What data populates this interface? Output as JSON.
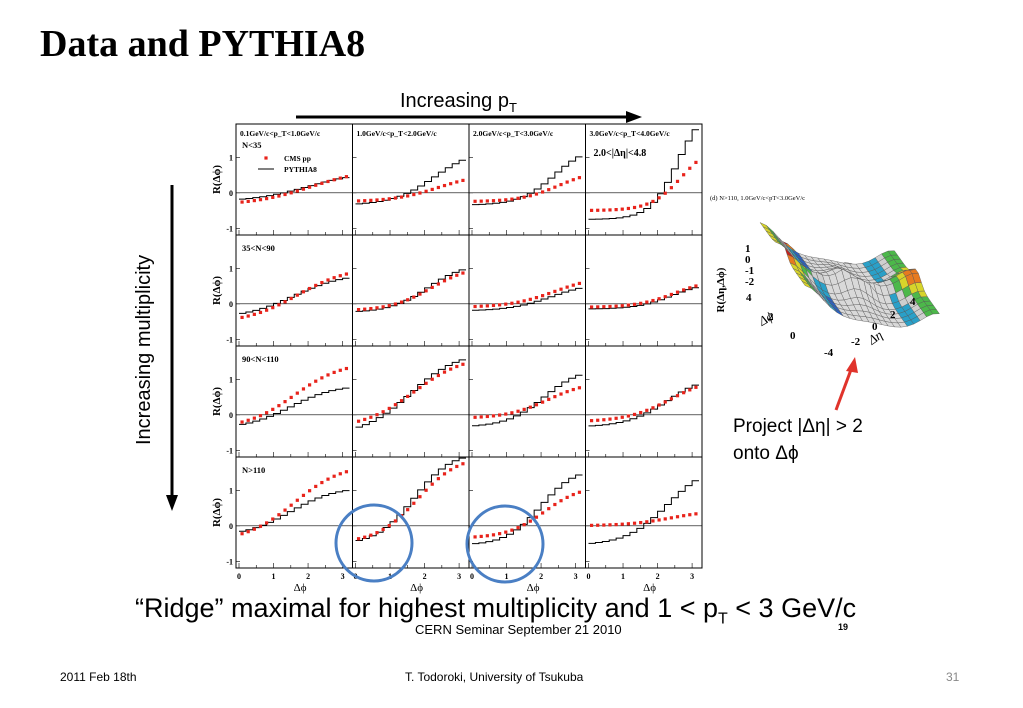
{
  "title": "Data and PYTHIA8",
  "pt_arrow": {
    "label": "Increasing p",
    "sub": "T"
  },
  "multiplicity_arrow": {
    "label": "Increasing multiplicity"
  },
  "ridge": {
    "prefix": "“Ridge”  maximal for highest multiplicity and 1 < p",
    "sub": "T",
    "suffix": " < 3 GeV/c"
  },
  "seminar": "CERN Seminar September 21 2010",
  "seminar_page": "19",
  "footer": {
    "date": "2011 Feb 18th",
    "author": "T. Todoroki, University of Tsukuba",
    "page": "31"
  },
  "inset": {
    "title": "(d) N>110, 1.0GeV/c<p",
    "title_sub": "T",
    "title_end": "<3.0GeV/c",
    "zlabel": "R(Δη,Δϕ)",
    "x_label": "Δϕ",
    "y_label": "Δη",
    "x_ticks": [
      "4",
      "2",
      "0"
    ],
    "y_ticks": [
      "-4",
      "-2",
      "0",
      "2",
      "4"
    ],
    "z_ticks": [
      "1",
      "0",
      "-1",
      "-2"
    ]
  },
  "project_text": {
    "line1": "Project |Δη| > 2",
    "line2": "onto Δϕ"
  },
  "colors": {
    "cms": "#e8231b",
    "pythia": "#000000",
    "circle": "#4a7fc4",
    "arrow": "#e0332b"
  },
  "chart_data": {
    "type": "scatter",
    "ylabel": "R(Δϕ)",
    "xlabel": "Δϕ",
    "xlim": [
      0,
      3.2
    ],
    "x_ticks": [
      "0",
      "1",
      "2",
      "3"
    ],
    "y_ticks": [
      "1",
      "0",
      "-1"
    ],
    "rapidity_label": "2.0<|Δη|<4.8",
    "columns": [
      "0.1GeV/c<p_T<1.0GeV/c",
      "1.0GeV/c<p_T<2.0GeV/c",
      "2.0GeV/c<p_T<3.0GeV/c",
      "3.0GeV/c<p_T<4.0GeV/c"
    ],
    "rows": [
      "N<35",
      "35<N<90",
      "90<N<110",
      "N>110"
    ],
    "legend": [
      "CMS pp",
      "PYTHIA8"
    ],
    "panels": [
      [
        {
          "d": [
            -0.35,
            0.7
          ],
          "m": [
            2.0,
            0.8
          ],
          "s": [
            -0.25,
            0.6
          ]
        },
        {
          "d": [
            -0.25,
            0.55
          ],
          "m": [
            2.3,
            0.6
          ],
          "s": [
            -0.35,
            1.25
          ]
        },
        {
          "d": [
            -0.25,
            0.65
          ],
          "m": [
            2.4,
            0.5
          ],
          "s": [
            -0.35,
            1.35
          ]
        },
        {
          "d": [
            -0.5,
            1.4
          ],
          "m": [
            2.6,
            0.4
          ],
          "s": [
            -0.75,
            2.5
          ]
        }
      ],
      [
        {
          "d": [
            -0.55,
            1.05
          ],
          "m": [
            1.6,
            0.7
          ],
          "s": [
            -0.4,
            0.85
          ]
        },
        {
          "d": [
            -0.2,
            1.1
          ],
          "m": [
            2.1,
            0.55
          ],
          "s": [
            -0.25,
            1.15
          ]
        },
        {
          "d": [
            -0.1,
            0.8
          ],
          "m": [
            2.3,
            0.6
          ],
          "s": [
            -0.2,
            0.6
          ]
        },
        {
          "d": [
            -0.1,
            0.7
          ],
          "m": [
            2.4,
            0.5
          ],
          "s": [
            -0.15,
            0.6
          ]
        }
      ],
      [
        {
          "d": [
            -0.4,
            1.5
          ],
          "m": [
            1.5,
            0.65
          ],
          "s": [
            -0.4,
            0.85
          ]
        },
        {
          "d": [
            -0.4,
            1.7
          ],
          "m": [
            1.6,
            0.7
          ],
          "s": [
            -0.6,
            1.8
          ]
        },
        {
          "d": [
            -0.1,
            0.95
          ],
          "m": [
            2.1,
            0.55
          ],
          "s": [
            -0.35,
            1.35
          ]
        },
        {
          "d": [
            -0.2,
            1.1
          ],
          "m": [
            2.3,
            0.6
          ],
          "s": [
            -0.35,
            1.15
          ]
        }
      ],
      [
        {
          "d": [
            -0.45,
            1.75
          ],
          "m": [
            1.5,
            0.65
          ],
          "s": [
            -0.3,
            1.1
          ]
        },
        {
          "d": [
            -0.5,
            2.0
          ],
          "m": [
            1.7,
            0.55
          ],
          "s": [
            -0.55,
            2.1
          ]
        },
        {
          "d": [
            -0.35,
            1.15
          ],
          "m": [
            2.0,
            0.5
          ],
          "s": [
            -0.55,
            1.65
          ]
        },
        {
          "d": [
            0.0,
            0.45
          ],
          "m": [
            2.3,
            0.6
          ],
          "s": [
            -0.55,
            1.75
          ]
        }
      ]
    ]
  }
}
